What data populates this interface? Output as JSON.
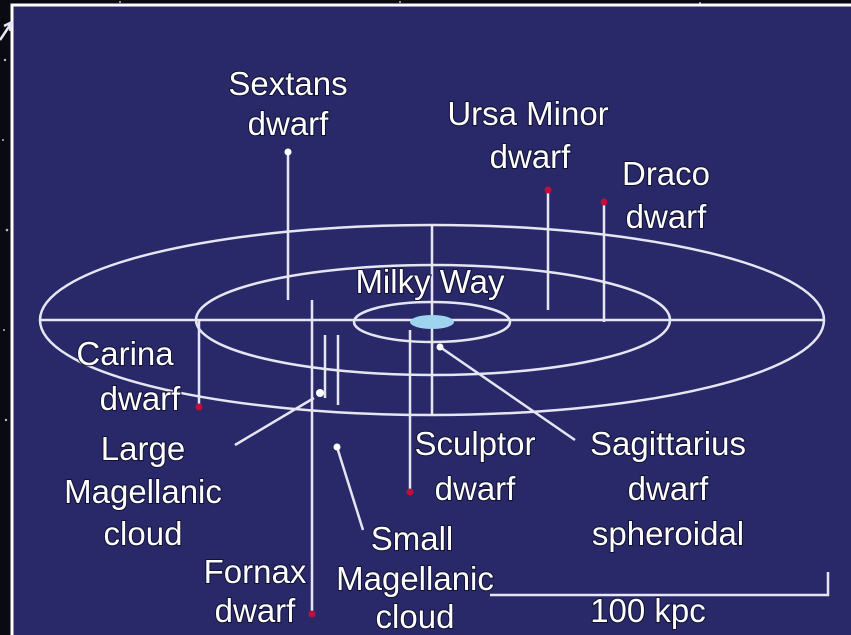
{
  "nodes": [
    {
      "lines": [
        "Sextans",
        "dwarf"
      ]
    },
    {
      "lines": [
        "Ursa Minor",
        "dwarf"
      ]
    },
    {
      "lines": [
        "Draco",
        "dwarf"
      ]
    },
    {
      "lines": [
        "Milky Way"
      ]
    },
    {
      "lines": [
        "Carina",
        "dwarf"
      ]
    },
    {
      "lines": [
        "Large",
        "Magellanic",
        "cloud"
      ]
    },
    {
      "lines": [
        "Sculptor",
        "dwarf"
      ]
    },
    {
      "lines": [
        "Sagittarius",
        "dwarf",
        "spheroidal"
      ]
    },
    {
      "lines": [
        "Small",
        "Magellanic",
        "cloud"
      ]
    },
    {
      "lines": [
        "Fornax",
        "dwarf"
      ]
    }
  ],
  "scale": {
    "label": "100 kpc"
  }
}
